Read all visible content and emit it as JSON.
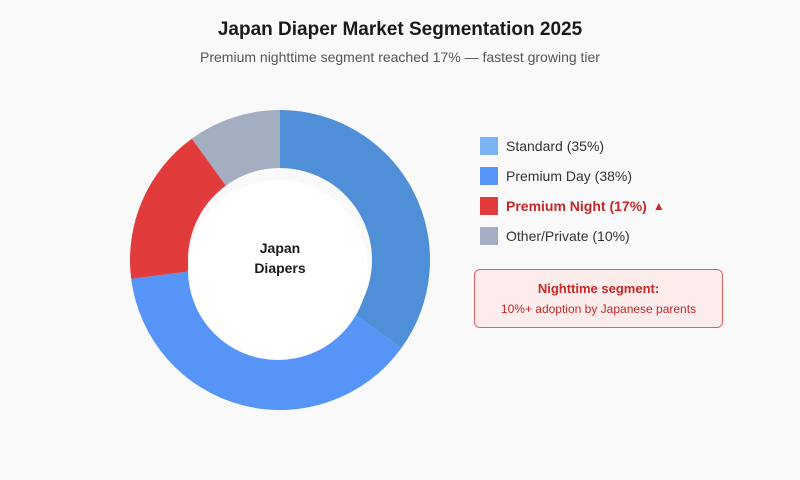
{
  "chart_data": {
    "type": "pie",
    "title": "Japan Diaper Market Segmentation 2025",
    "subtitle": "Premium nighttime segment reached 17% — fastest growing tier",
    "center_label": [
      "Japan",
      "Diapers"
    ],
    "legend_placement": "right",
    "slices": [
      {
        "label": "Standard (35%)",
        "value": 35,
        "color": "#4f8fd8"
      },
      {
        "label": "Premium Day (38%)",
        "value": 38,
        "color": "#5794f7"
      },
      {
        "label": "Premium Night (17%)",
        "value": 17,
        "color": "#e23b3b",
        "highlight": true,
        "marker": "▲"
      },
      {
        "label": "Other/Private (10%)",
        "value": 10,
        "color": "#a3aec0"
      }
    ],
    "legend_colors": [
      "#7ab4f5",
      "#5794f7",
      "#e23b3b",
      "#a3aec0"
    ],
    "callout": {
      "title": "Nighttime segment:",
      "text": "10%+ adoption by Japanese parents"
    }
  }
}
